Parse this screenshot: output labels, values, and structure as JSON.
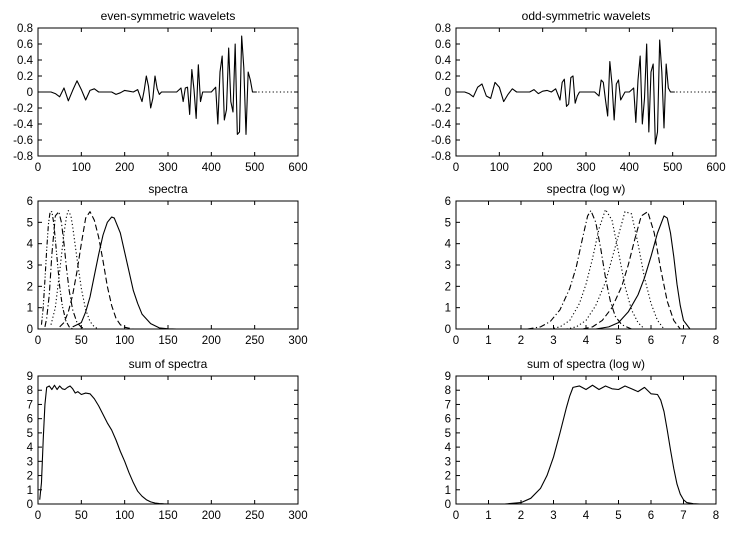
{
  "chart_data": [
    {
      "id": "even",
      "type": "line",
      "title": "even-symmetric wavelets",
      "xlim": [
        0,
        600
      ],
      "ylim": [
        -0.8,
        0.8
      ],
      "xticks": [
        0,
        100,
        200,
        300,
        400,
        500,
        600
      ],
      "yticks": [
        -0.8,
        -0.6,
        -0.4,
        -0.2,
        0,
        0.2,
        0.4,
        0.6,
        0.8
      ],
      "ytick_labels": [
        "-0.8",
        "-0.6",
        "-0.4",
        "-0.2",
        "0",
        "0.2",
        "0.4",
        "0.6",
        "0.8"
      ],
      "grid": false,
      "legend": "none",
      "zero_line": {
        "x": [
          500,
          600
        ],
        "style": "dotted"
      },
      "series": [
        {
          "style": "solid",
          "x": [
            0,
            10,
            20,
            30,
            40,
            50,
            60,
            70,
            80,
            90,
            100,
            110,
            120,
            130,
            140,
            150,
            160,
            170,
            180,
            190,
            200,
            210,
            220,
            230,
            240,
            245,
            250,
            255,
            260,
            265,
            270,
            275,
            280,
            285,
            290,
            300,
            310,
            320,
            330,
            335,
            340,
            345,
            350,
            355,
            360,
            365,
            370,
            375,
            380,
            390,
            400,
            410,
            415,
            420,
            425,
            430,
            435,
            440,
            445,
            450,
            455,
            460,
            465,
            470,
            475,
            480,
            485,
            490,
            495,
            500,
            505
          ],
          "y": [
            0,
            0,
            0,
            0,
            -0.02,
            -0.06,
            0.05,
            -0.11,
            0.02,
            0.14,
            0.03,
            -0.1,
            0.02,
            0.04,
            0,
            0,
            0,
            0,
            -0.03,
            -0.01,
            0.02,
            0.01,
            0,
            0.03,
            -0.12,
            0.02,
            0.2,
            0.07,
            -0.2,
            -0.08,
            0.2,
            0.04,
            -0.03,
            0,
            0,
            0,
            0,
            0,
            0.05,
            -0.12,
            0.05,
            0.06,
            -0.28,
            0.28,
            0.03,
            -0.33,
            0.34,
            -0.12,
            0,
            0,
            0,
            0.06,
            -0.4,
            0.25,
            0.45,
            -0.35,
            -0.22,
            0.55,
            -0.12,
            -0.25,
            0.6,
            -0.53,
            -0.5,
            0.7,
            0.3,
            -0.53,
            0.25,
            0.15,
            0,
            0,
            0
          ]
        }
      ]
    },
    {
      "id": "odd",
      "type": "line",
      "title": "odd-symmetric wavelets",
      "xlim": [
        0,
        600
      ],
      "ylim": [
        -0.8,
        0.8
      ],
      "xticks": [
        0,
        100,
        200,
        300,
        400,
        500,
        600
      ],
      "yticks": [
        -0.8,
        -0.6,
        -0.4,
        -0.2,
        0,
        0.2,
        0.4,
        0.6,
        0.8
      ],
      "ytick_labels": [
        "-0.8",
        "-0.6",
        "-0.4",
        "-0.2",
        "0",
        "0.2",
        "0.4",
        "0.6",
        "0.8"
      ],
      "grid": false,
      "legend": "none",
      "zero_line": {
        "x": [
          500,
          600
        ],
        "style": "dotted"
      },
      "series": [
        {
          "style": "solid",
          "x": [
            0,
            10,
            20,
            30,
            40,
            50,
            60,
            70,
            80,
            90,
            100,
            110,
            120,
            130,
            140,
            150,
            160,
            170,
            180,
            190,
            200,
            210,
            220,
            230,
            240,
            245,
            250,
            255,
            260,
            265,
            270,
            275,
            280,
            285,
            290,
            300,
            310,
            320,
            330,
            335,
            340,
            345,
            350,
            355,
            360,
            365,
            370,
            375,
            380,
            390,
            400,
            410,
            415,
            420,
            425,
            430,
            435,
            440,
            445,
            450,
            455,
            460,
            465,
            470,
            475,
            480,
            485,
            490,
            495,
            500,
            505
          ],
          "y": [
            0,
            0,
            0,
            -0.02,
            -0.06,
            0.06,
            0.1,
            -0.05,
            -0.08,
            0.12,
            0.06,
            -0.12,
            -0.03,
            0.04,
            0,
            0,
            0,
            0,
            0.03,
            -0.02,
            0.01,
            0.02,
            0,
            0.04,
            -0.1,
            0.12,
            0.16,
            -0.18,
            -0.15,
            0.18,
            0.2,
            -0.14,
            -0.05,
            0,
            0,
            0,
            0,
            0,
            -0.05,
            0.15,
            0.12,
            -0.1,
            -0.3,
            0.38,
            0.1,
            -0.35,
            0.1,
            0.15,
            -0.1,
            0,
            0,
            0.05,
            -0.38,
            0.15,
            0.45,
            -0.4,
            -0.08,
            0.6,
            -0.5,
            0.25,
            0.35,
            -0.65,
            -0.5,
            0.65,
            0.25,
            -0.45,
            0.35,
            0.05,
            0,
            0,
            0
          ]
        }
      ]
    },
    {
      "id": "spec",
      "type": "line",
      "title": "spectra",
      "xlim": [
        0,
        300
      ],
      "ylim": [
        0,
        6
      ],
      "xticks": [
        0,
        50,
        100,
        150,
        200,
        250,
        300
      ],
      "yticks": [
        0,
        1,
        2,
        3,
        4,
        5,
        6
      ],
      "grid": false,
      "legend": "none",
      "series": [
        {
          "style": "solid",
          "x": [
            40,
            50,
            55,
            60,
            65,
            70,
            75,
            80,
            85,
            88,
            90,
            95,
            100,
            105,
            110,
            115,
            120,
            130,
            140,
            150,
            160
          ],
          "y": [
            0.1,
            0.3,
            0.8,
            1.5,
            2.5,
            3.5,
            4.4,
            5.0,
            5.25,
            5.2,
            5.0,
            4.5,
            3.6,
            2.7,
            1.8,
            1.2,
            0.7,
            0.25,
            0.05,
            0.01,
            0
          ]
        },
        {
          "style": "dashed",
          "x": [
            25,
            30,
            35,
            40,
            45,
            50,
            55,
            60,
            65,
            70,
            75,
            80,
            85,
            90,
            95,
            100,
            110
          ],
          "y": [
            0.1,
            0.3,
            0.8,
            1.6,
            2.7,
            4.0,
            5.2,
            5.5,
            5.1,
            4.3,
            3.2,
            2.0,
            1.1,
            0.5,
            0.2,
            0.08,
            0
          ]
        },
        {
          "style": "dotted",
          "x": [
            15,
            20,
            25,
            30,
            33,
            35,
            38,
            40,
            45,
            50,
            55,
            60,
            65,
            70
          ],
          "y": [
            0.2,
            1.0,
            2.7,
            4.5,
            5.3,
            5.55,
            5.3,
            4.8,
            3.3,
            1.9,
            0.9,
            0.35,
            0.1,
            0
          ]
        },
        {
          "style": "dotdash",
          "x": [
            8,
            10,
            13,
            16,
            20,
            24,
            27,
            30,
            33,
            36,
            40,
            45,
            50,
            55
          ],
          "y": [
            0.1,
            0.5,
            1.6,
            3.5,
            5.3,
            5.5,
            5.0,
            4.0,
            2.8,
            1.8,
            0.9,
            0.3,
            0.08,
            0
          ]
        },
        {
          "style": "dashdotdot",
          "x": [
            4,
            6,
            8,
            10,
            12,
            14,
            16,
            18,
            20,
            22,
            25,
            28,
            32,
            36,
            40
          ],
          "y": [
            0.2,
            1.0,
            2.3,
            3.7,
            4.9,
            5.5,
            5.5,
            5.0,
            4.2,
            3.3,
            2.0,
            1.1,
            0.4,
            0.1,
            0
          ]
        },
        {
          "style": "solid",
          "x": [
            150,
            300
          ],
          "y": [
            0,
            0
          ]
        }
      ]
    },
    {
      "id": "speclog",
      "type": "line",
      "title": "spectra (log w)",
      "xlim": [
        0,
        8
      ],
      "ylim": [
        0,
        6
      ],
      "xticks": [
        0,
        1,
        2,
        3,
        4,
        5,
        6,
        7,
        8
      ],
      "yticks": [
        0,
        1,
        2,
        3,
        4,
        5,
        6
      ],
      "grid": false,
      "legend": "none",
      "series": [
        {
          "style": "dotdash",
          "x": [
            2.2,
            2.6,
            2.9,
            3.2,
            3.5,
            3.7,
            3.9,
            4.05,
            4.15,
            4.3,
            4.45,
            4.6,
            4.75,
            4.9,
            5.1,
            5.4
          ],
          "y": [
            0,
            0.1,
            0.35,
            0.9,
            1.9,
            2.9,
            4.3,
            5.3,
            5.55,
            5.0,
            3.8,
            2.4,
            1.3,
            0.6,
            0.2,
            0
          ]
        },
        {
          "style": "dotted",
          "x": [
            2.9,
            3.2,
            3.5,
            3.8,
            4.0,
            4.2,
            4.4,
            4.6,
            4.8,
            5.0,
            5.2,
            5.4,
            5.6,
            5.8
          ],
          "y": [
            0,
            0.1,
            0.4,
            1.2,
            2.1,
            3.3,
            4.7,
            5.6,
            5.1,
            3.6,
            2.0,
            0.9,
            0.3,
            0
          ]
        },
        {
          "style": "dotted",
          "x": [
            3.4,
            3.7,
            4.0,
            4.3,
            4.6,
            4.8,
            5.0,
            5.2,
            5.4,
            5.6,
            5.8,
            6.0,
            6.2,
            6.4
          ],
          "y": [
            0,
            0.1,
            0.4,
            1.1,
            2.2,
            3.3,
            4.4,
            5.5,
            5.4,
            4.0,
            2.4,
            1.2,
            0.4,
            0
          ]
        },
        {
          "style": "dashed",
          "x": [
            3.9,
            4.2,
            4.5,
            4.8,
            5.1,
            5.3,
            5.5,
            5.7,
            5.9,
            6.1,
            6.3,
            6.5,
            6.7,
            6.9
          ],
          "y": [
            0,
            0.1,
            0.4,
            1.0,
            2.0,
            3.0,
            4.2,
            5.3,
            5.5,
            4.5,
            2.8,
            1.3,
            0.4,
            0
          ]
        },
        {
          "style": "solid",
          "x": [
            4.3,
            4.7,
            5.0,
            5.3,
            5.6,
            5.8,
            6.0,
            6.2,
            6.4,
            6.5,
            6.6,
            6.7,
            6.8,
            6.9,
            7.0,
            7.2,
            8.0
          ],
          "y": [
            0,
            0.1,
            0.3,
            0.8,
            1.6,
            2.4,
            3.4,
            4.5,
            5.3,
            5.2,
            4.5,
            3.4,
            2.1,
            1.1,
            0.4,
            0,
            0
          ]
        },
        {
          "style": "solid",
          "x": [
            0,
            2.2
          ],
          "y": [
            0,
            0
          ]
        }
      ]
    },
    {
      "id": "sum",
      "type": "line",
      "title": "sum of spectra",
      "xlim": [
        0,
        300
      ],
      "ylim": [
        0,
        9
      ],
      "xticks": [
        0,
        50,
        100,
        150,
        200,
        250,
        300
      ],
      "yticks": [
        0,
        1,
        2,
        3,
        4,
        5,
        6,
        7,
        8,
        9
      ],
      "grid": false,
      "legend": "none",
      "series": [
        {
          "style": "solid",
          "x": [
            2,
            4,
            6,
            8,
            10,
            13,
            16,
            19,
            22,
            25,
            28,
            31,
            34,
            37,
            40,
            43,
            46,
            50,
            55,
            60,
            65,
            70,
            75,
            80,
            85,
            90,
            95,
            100,
            105,
            110,
            115,
            120,
            125,
            130,
            135,
            140,
            145,
            150
          ],
          "y": [
            0.3,
            1.5,
            4.5,
            7.0,
            8.2,
            8.3,
            8.05,
            8.35,
            8.05,
            8.3,
            8.1,
            8.05,
            8.2,
            8.3,
            8.1,
            7.8,
            7.9,
            7.7,
            7.8,
            7.75,
            7.4,
            6.9,
            6.3,
            5.7,
            5.2,
            4.5,
            3.7,
            3.0,
            2.2,
            1.5,
            0.9,
            0.55,
            0.3,
            0.15,
            0.07,
            0.03,
            0.01,
            0
          ]
        },
        {
          "style": "dotted",
          "x": [
            150,
            300
          ],
          "y": [
            0,
            0
          ]
        }
      ]
    },
    {
      "id": "sumlog",
      "type": "line",
      "title": "sum of spectra (log w)",
      "xlim": [
        0,
        8
      ],
      "ylim": [
        0,
        9
      ],
      "xticks": [
        0,
        1,
        2,
        3,
        4,
        5,
        6,
        7,
        8
      ],
      "yticks": [
        0,
        1,
        2,
        3,
        4,
        5,
        6,
        7,
        8,
        9
      ],
      "grid": false,
      "legend": "none",
      "series": [
        {
          "style": "solid",
          "x": [
            0,
            1,
            1.5,
            2.0,
            2.3,
            2.6,
            2.8,
            3.0,
            3.2,
            3.4,
            3.5,
            3.6,
            3.8,
            4.0,
            4.2,
            4.4,
            4.6,
            4.8,
            5.0,
            5.2,
            5.4,
            5.6,
            5.8,
            6.0,
            6.2,
            6.3,
            6.4,
            6.5,
            6.6,
            6.7,
            6.8,
            6.9,
            7.0,
            7.1,
            7.3,
            7.5
          ],
          "y": [
            0,
            0,
            0,
            0.1,
            0.4,
            1.1,
            2.0,
            3.3,
            5.0,
            6.8,
            7.6,
            8.2,
            8.3,
            8.05,
            8.35,
            8.05,
            8.3,
            8.1,
            8.05,
            8.3,
            8.1,
            7.9,
            8.2,
            7.75,
            7.7,
            7.3,
            6.5,
            5.2,
            3.8,
            2.5,
            1.4,
            0.7,
            0.3,
            0.1,
            0.02,
            0
          ]
        },
        {
          "style": "dotted",
          "x": [
            7.5,
            8
          ],
          "y": [
            0,
            0
          ]
        }
      ]
    }
  ]
}
